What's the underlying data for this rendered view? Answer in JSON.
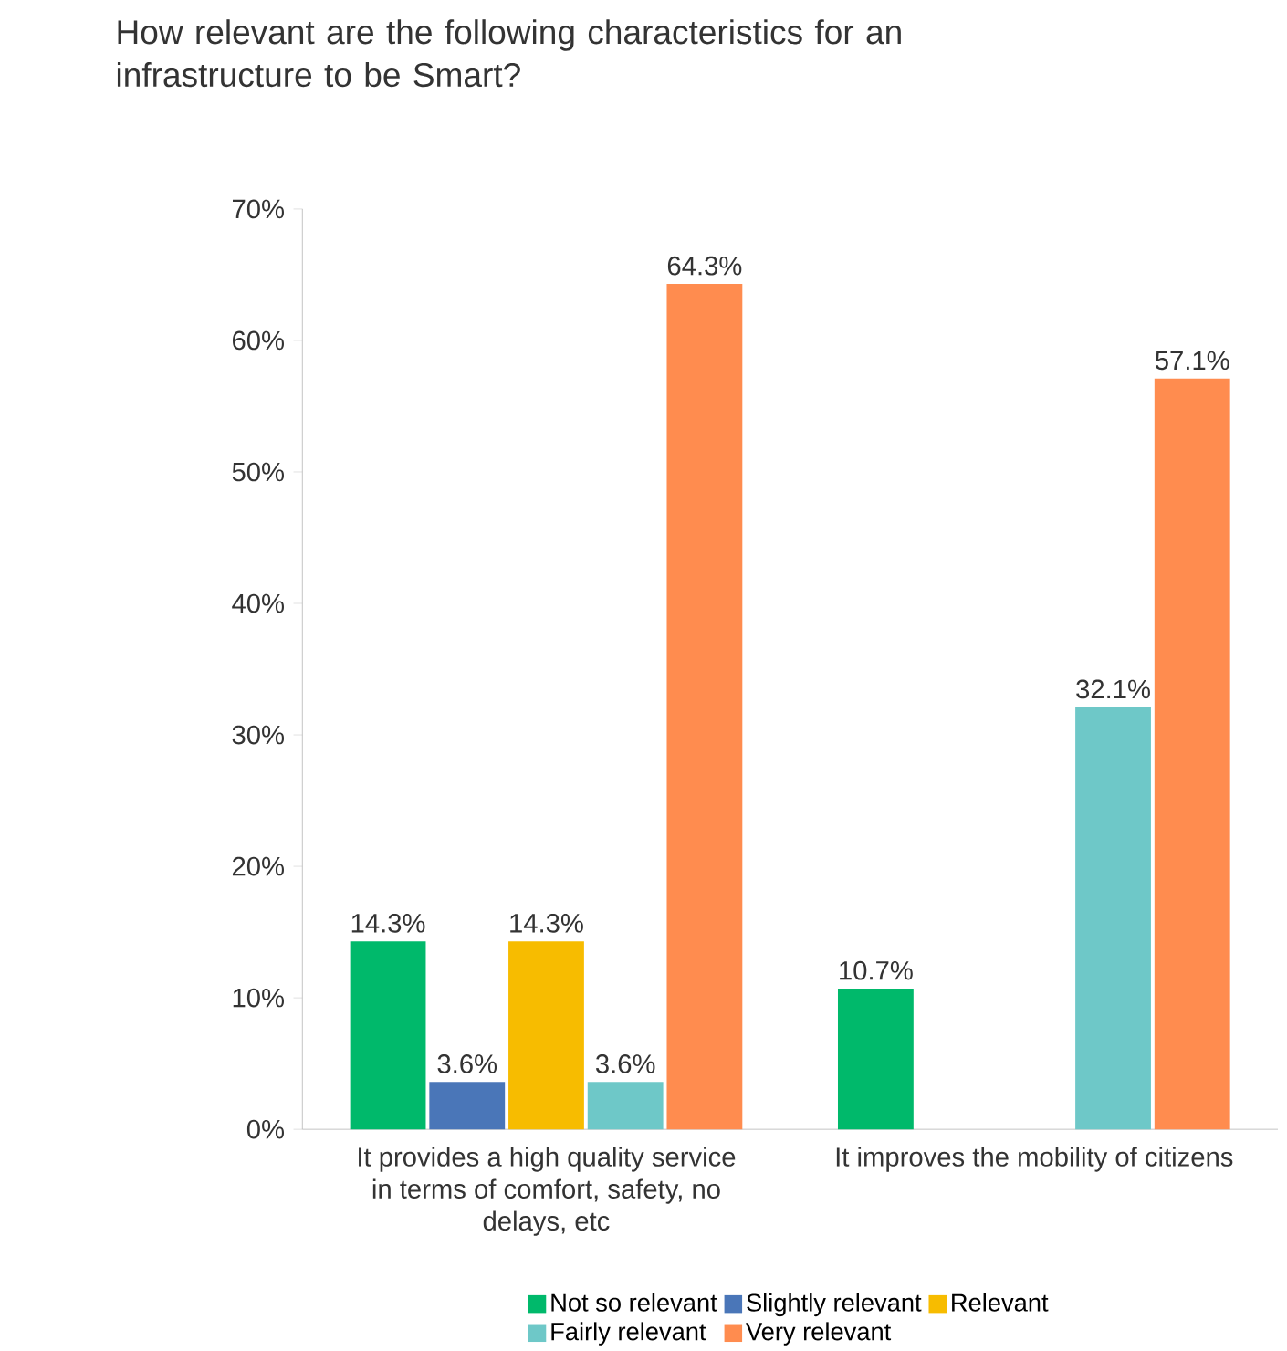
{
  "chart_data": {
    "type": "bar",
    "title": "How relevant are the following characteristics for an infrastructure to be Smart?",
    "categories": [
      "It provides a high quality service in terms of comfort, safety, no delays, etc",
      "It improves the mobility of citizens"
    ],
    "series": [
      {
        "name": "Not so relevant",
        "color": "#00b96b",
        "values": [
          14.3,
          10.7
        ],
        "value_labels": [
          "14.3%",
          "10.7%"
        ]
      },
      {
        "name": "Slightly relevant",
        "color": "#4a76b8",
        "values": [
          3.6,
          null
        ],
        "value_labels": [
          "3.6%",
          null
        ]
      },
      {
        "name": "Relevant",
        "color": "#f7bc00",
        "values": [
          14.3,
          null
        ],
        "value_labels": [
          "14.3%",
          null
        ]
      },
      {
        "name": "Fairly relevant",
        "color": "#6ec8c8",
        "values": [
          3.6,
          32.1
        ],
        "value_labels": [
          "3.6%",
          "32.1%"
        ]
      },
      {
        "name": "Very relevant",
        "color": "#ff8c4f",
        "values": [
          64.3,
          57.1
        ],
        "value_labels": [
          "64.3%",
          "57.1%"
        ]
      }
    ],
    "ylim": [
      0,
      70
    ],
    "yticks": [
      {
        "value": 0,
        "label": "0%"
      },
      {
        "value": 10,
        "label": "10%"
      },
      {
        "value": 20,
        "label": "20%"
      },
      {
        "value": 30,
        "label": "30%"
      },
      {
        "value": 40,
        "label": "40%"
      },
      {
        "value": 50,
        "label": "50%"
      },
      {
        "value": 60,
        "label": "60%"
      },
      {
        "value": 70,
        "label": "70%"
      }
    ],
    "grid": false,
    "legend": "bottom"
  }
}
